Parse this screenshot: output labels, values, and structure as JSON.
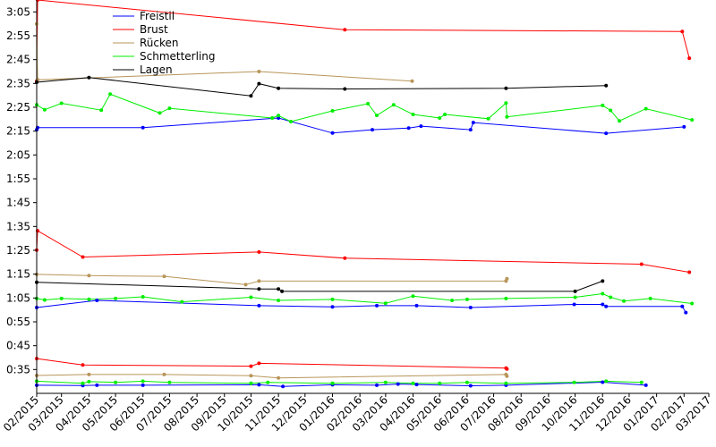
{
  "chart_data": {
    "type": "line",
    "title": "",
    "xlabel": "",
    "ylabel": "",
    "x_axis": {
      "type": "date",
      "range": [
        "2015-02-01",
        "2017-03-01"
      ],
      "tick_labels": [
        "02/2015",
        "03/2015",
        "04/2015",
        "05/2015",
        "06/2015",
        "07/2015",
        "08/2015",
        "09/2015",
        "10/2015",
        "11/2015",
        "12/2015",
        "01/2016",
        "02/2016",
        "03/2016",
        "04/2016",
        "05/2016",
        "06/2016",
        "07/2016",
        "08/2016",
        "09/2016",
        "10/2016",
        "11/2016",
        "12/2016",
        "01/2017",
        "02/2017",
        "03/2017"
      ]
    },
    "y_axis": {
      "unit": "m:ss",
      "range": [
        "0:25",
        "3:10"
      ],
      "tick_labels": [
        "0:35",
        "0:45",
        "0:55",
        "1:05",
        "1:15",
        "1:25",
        "1:35",
        "1:45",
        "1:55",
        "2:05",
        "2:15",
        "2:25",
        "2:35",
        "2:45",
        "2:55",
        "3:05"
      ]
    },
    "grid": false,
    "legend_position": "top-left",
    "series": [
      {
        "name": "Freistil",
        "color": "#0000ff",
        "groups": [
          [
            [
              "2015-02-01",
              "2:15.6"
            ],
            [
              "2015-02-02",
              "2:16.5"
            ],
            [
              "2015-06-01",
              "2:16.5"
            ],
            [
              "2015-11-01",
              "2:20.5"
            ],
            [
              "2016-01-01",
              "2:14.2"
            ],
            [
              "2016-02-15",
              "2:15.6"
            ],
            [
              "2016-03-27",
              "2:16.3"
            ],
            [
              "2016-04-10",
              "2:17.1"
            ],
            [
              "2016-06-05",
              "2:15.6"
            ],
            [
              "2016-06-08",
              "2:18.6"
            ],
            [
              "2016-11-05",
              "2:14.1"
            ],
            [
              "2017-02-01",
              "2:16.8"
            ]
          ],
          [
            [
              "2015-02-01",
              "1:01"
            ],
            [
              "2015-04-10",
              "1:04"
            ],
            [
              "2015-10-10",
              "1:01.8"
            ],
            [
              "2016-01-01",
              "1:01.3"
            ],
            [
              "2016-02-20",
              "1:01.8"
            ],
            [
              "2016-04-05",
              "1:01.8"
            ],
            [
              "2016-06-05",
              "1:01"
            ],
            [
              "2016-09-30",
              "1:02.3"
            ],
            [
              "2016-11-01",
              "1:02.3"
            ],
            [
              "2016-11-05",
              "1:01.5"
            ],
            [
              "2017-01-30",
              "1:01.5"
            ],
            [
              "2017-02-03",
              "0:58.9"
            ]
          ],
          [
            [
              "2015-02-01",
              "0:28.4"
            ],
            [
              "2015-03-25",
              "0:28.3"
            ],
            [
              "2015-04-10",
              "0:28.4"
            ],
            [
              "2015-06-01",
              "0:28.4"
            ],
            [
              "2015-10-10",
              "0:28.6"
            ],
            [
              "2015-11-06",
              "0:27.9"
            ],
            [
              "2016-01-01",
              "0:28.6"
            ],
            [
              "2016-02-20",
              "0:28.4"
            ],
            [
              "2016-03-15",
              "0:28.9"
            ],
            [
              "2016-04-05",
              "0:28.7"
            ],
            [
              "2016-06-05",
              "0:28.2"
            ],
            [
              "2016-07-15",
              "0:28.4"
            ],
            [
              "2016-11-01",
              "0:29.7"
            ],
            [
              "2016-12-20",
              "0:28.4"
            ]
          ]
        ]
      },
      {
        "name": "Brust",
        "color": "#ff0000",
        "groups": [
          [
            [
              "2015-02-01",
              "2:36"
            ],
            [
              "2015-02-02",
              "3:10"
            ],
            [
              "2016-01-15",
              "2:57.5"
            ],
            [
              "2017-01-30",
              "2:56.8"
            ],
            [
              "2017-02-07",
              "2:45.6"
            ]
          ],
          [
            [
              "2015-02-01",
              "1:25.1"
            ],
            [
              "2015-02-02",
              "1:33.2"
            ],
            [
              "2015-03-25",
              "1:22.2"
            ],
            [
              "2015-10-10",
              "1:24.3"
            ],
            [
              "2016-01-15",
              "1:21.7"
            ],
            [
              "2016-12-15",
              "1:19.2"
            ],
            [
              "2017-02-07",
              "1:15.8"
            ]
          ],
          [
            [
              "2015-02-01",
              "0:39.6"
            ],
            [
              "2015-03-25",
              "0:36.9"
            ],
            [
              "2015-10-01",
              "0:36.4"
            ],
            [
              "2015-10-10",
              "0:37.6"
            ],
            [
              "2016-07-15",
              "0:35.6"
            ],
            [
              "2016-07-16",
              "0:35.2"
            ]
          ]
        ]
      },
      {
        "name": "Rücken",
        "color": "#b8955a",
        "groups": [
          [
            [
              "2015-02-01",
              "3:00"
            ],
            [
              "2015-02-02",
              "2:36.5"
            ],
            [
              "2015-10-10",
              "2:40"
            ],
            [
              "2016-03-31",
              "2:36"
            ]
          ],
          [
            [
              "2015-02-01",
              "1:14.9"
            ],
            [
              "2015-04-01",
              "1:14.4"
            ],
            [
              "2015-06-25",
              "1:14.1"
            ],
            [
              "2015-09-25",
              "1:10.6"
            ],
            [
              "2015-10-10",
              "1:12.1"
            ],
            [
              "2016-07-15",
              "1:12.1"
            ],
            [
              "2016-07-16",
              "1:13.1"
            ]
          ],
          [
            [
              "2015-02-01",
              "0:32.5"
            ],
            [
              "2015-04-01",
              "0:32.9"
            ],
            [
              "2015-06-25",
              "0:32.9"
            ],
            [
              "2015-10-01",
              "0:32.4"
            ],
            [
              "2015-11-01",
              "0:31.5"
            ],
            [
              "2016-07-15",
              "0:32.9"
            ],
            [
              "2016-07-16",
              "0:32.2"
            ]
          ]
        ]
      },
      {
        "name": "Schmetterling",
        "color": "#00ee00",
        "groups": [
          [
            [
              "2015-02-01",
              "2:26"
            ],
            [
              "2015-02-10",
              "2:24"
            ],
            [
              "2015-03-01",
              "2:26.7"
            ],
            [
              "2015-04-15",
              "2:23.8"
            ],
            [
              "2015-04-25",
              "2:30.5"
            ],
            [
              "2015-06-20",
              "2:22.6"
            ],
            [
              "2015-07-01",
              "2:24.6"
            ],
            [
              "2015-10-25",
              "2:20.5"
            ],
            [
              "2015-11-01",
              "2:21.5"
            ],
            [
              "2015-11-15",
              "2:19"
            ],
            [
              "2016-01-01",
              "2:23.5"
            ],
            [
              "2016-02-10",
              "2:26.5"
            ],
            [
              "2016-02-20",
              "2:21.6"
            ],
            [
              "2016-03-10",
              "2:26"
            ],
            [
              "2016-04-01",
              "2:22"
            ],
            [
              "2016-05-01",
              "2:20.5"
            ],
            [
              "2016-05-07",
              "2:22"
            ],
            [
              "2016-06-25",
              "2:20.2"
            ],
            [
              "2016-07-15",
              "2:26.8"
            ],
            [
              "2016-07-16",
              "2:21"
            ],
            [
              "2016-11-01",
              "2:25.8"
            ],
            [
              "2016-11-10",
              "2:23.7"
            ],
            [
              "2016-11-20",
              "2:19.3"
            ],
            [
              "2016-12-20",
              "2:24.4"
            ],
            [
              "2017-02-10",
              "2:19.7"
            ]
          ],
          [
            [
              "2015-02-01",
              "1:04.8"
            ],
            [
              "2015-02-10",
              "1:04.2"
            ],
            [
              "2015-03-01",
              "1:04.8"
            ],
            [
              "2015-04-01",
              "1:04.5"
            ],
            [
              "2015-05-01",
              "1:04.8"
            ],
            [
              "2015-06-01",
              "1:05.5"
            ],
            [
              "2015-07-15",
              "1:03.4"
            ],
            [
              "2015-10-01",
              "1:05.3"
            ],
            [
              "2015-11-01",
              "1:04"
            ],
            [
              "2016-01-01",
              "1:04.4"
            ],
            [
              "2016-03-01",
              "1:02.8"
            ],
            [
              "2016-04-01",
              "1:05.8"
            ],
            [
              "2016-05-15",
              "1:04"
            ],
            [
              "2016-06-01",
              "1:04.4"
            ],
            [
              "2016-07-15",
              "1:04.8"
            ],
            [
              "2016-10-01",
              "1:05.3"
            ],
            [
              "2016-11-01",
              "1:06.8"
            ],
            [
              "2016-11-10",
              "1:05.3"
            ],
            [
              "2016-11-25",
              "1:03.7"
            ],
            [
              "2016-12-25",
              "1:04.8"
            ],
            [
              "2017-02-10",
              "1:02.7"
            ]
          ],
          [
            [
              "2015-02-01",
              "0:30.1"
            ],
            [
              "2015-03-25",
              "0:29.2"
            ],
            [
              "2015-04-01",
              "0:29.9"
            ],
            [
              "2015-05-01",
              "0:29.6"
            ],
            [
              "2015-06-01",
              "0:30.1"
            ],
            [
              "2015-07-01",
              "0:29.6"
            ],
            [
              "2015-10-01",
              "0:29.2"
            ],
            [
              "2015-10-20",
              "0:29.6"
            ],
            [
              "2016-01-01",
              "0:29.2"
            ],
            [
              "2016-03-01",
              "0:29.6"
            ],
            [
              "2016-04-01",
              "0:29.2"
            ],
            [
              "2016-05-01",
              "0:29.2"
            ],
            [
              "2016-06-01",
              "0:29.6"
            ],
            [
              "2016-07-15",
              "0:29.2"
            ],
            [
              "2016-09-30",
              "0:29.6"
            ],
            [
              "2016-11-05",
              "0:30.1"
            ],
            [
              "2016-12-15",
              "0:29.6"
            ]
          ]
        ]
      },
      {
        "name": "Lagen",
        "color": "#000000",
        "groups": [
          [
            [
              "2015-02-01",
              "2:35.5"
            ],
            [
              "2015-04-01",
              "2:37.5"
            ],
            [
              "2015-10-01",
              "2:29.8"
            ],
            [
              "2015-10-10",
              "2:34.9"
            ],
            [
              "2015-11-01",
              "2:33"
            ],
            [
              "2016-01-15",
              "2:32.7"
            ],
            [
              "2016-07-15",
              "2:33"
            ],
            [
              "2016-11-05",
              "2:34.1"
            ]
          ],
          [
            [
              "2015-02-01",
              "1:11.6"
            ],
            [
              "2015-10-10",
              "1:08.8"
            ],
            [
              "2015-11-01",
              "1:08.8"
            ],
            [
              "2015-11-05",
              "1:07.8"
            ],
            [
              "2016-10-01",
              "1:07.8"
            ],
            [
              "2016-11-01",
              "1:12.1"
            ]
          ]
        ]
      }
    ]
  }
}
